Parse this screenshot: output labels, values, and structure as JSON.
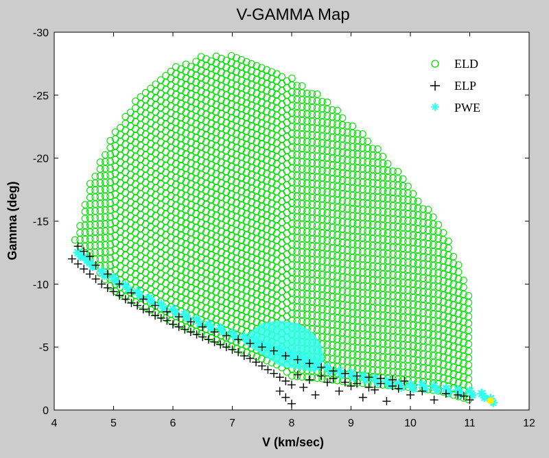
{
  "chart_data": {
    "type": "scatter",
    "title": "V-GAMMA Map",
    "xlabel": "V (km/sec)",
    "ylabel": "Gamma (deg)",
    "xlim": [
      4,
      12
    ],
    "ylim": [
      0,
      -30
    ],
    "y_axis_inverted": true,
    "xticks": [
      "4",
      "5",
      "6",
      "7",
      "8",
      "9",
      "10",
      "11",
      "12"
    ],
    "yticks": [
      "0",
      "-5",
      "-10",
      "-15",
      "-20",
      "-25",
      "-30"
    ],
    "grid": false,
    "legend_position": "top-right",
    "series": [
      {
        "name": "ELD",
        "marker": "o",
        "color": "#00e000",
        "region": {
          "lower_boundary": [
            [
              4.35,
              -13.5
            ],
            [
              5,
              -9.5
            ],
            [
              6,
              -7
            ],
            [
              7,
              -5
            ],
            [
              7.8,
              -3.5
            ],
            [
              8,
              -2.7
            ],
            [
              8.5,
              -2.5
            ],
            [
              9,
              -2.2
            ],
            [
              9.5,
              -2
            ],
            [
              10,
              -1.8
            ],
            [
              10.5,
              -1.5
            ],
            [
              11,
              -0.8
            ]
          ],
          "upper_boundary": [
            [
              4.35,
              -13.5
            ],
            [
              4.6,
              -18
            ],
            [
              5,
              -22
            ],
            [
              5.5,
              -25.5
            ],
            [
              6,
              -27.3
            ],
            [
              6.5,
              -28.1
            ],
            [
              6.8,
              -28.3
            ],
            [
              7.2,
              -28
            ],
            [
              7.8,
              -27
            ],
            [
              8.5,
              -25
            ],
            [
              9.2,
              -22
            ],
            [
              9.8,
              -19
            ],
            [
              10.3,
              -16
            ],
            [
              10.7,
              -13
            ],
            [
              10.95,
              -10
            ],
            [
              11.05,
              -7.5
            ],
            [
              11.05,
              -3
            ],
            [
              11,
              -0.8
            ]
          ]
        }
      },
      {
        "name": "ELP",
        "marker": "+",
        "color": "#000000",
        "points": [
          [
            4.3,
            -12
          ],
          [
            4.4,
            -11.6
          ],
          [
            4.5,
            -11.2
          ],
          [
            4.6,
            -10.8
          ],
          [
            4.7,
            -10.4
          ],
          [
            4.8,
            -10
          ],
          [
            4.9,
            -9.7
          ],
          [
            5,
            -9.4
          ],
          [
            5.1,
            -9.1
          ],
          [
            5.2,
            -8.8
          ],
          [
            5.3,
            -8.5
          ],
          [
            5.4,
            -8.3
          ],
          [
            5.5,
            -8
          ],
          [
            5.6,
            -7.8
          ],
          [
            5.7,
            -7.5
          ],
          [
            5.8,
            -7.3
          ],
          [
            5.9,
            -7.1
          ],
          [
            6,
            -6.8
          ],
          [
            6.1,
            -6.6
          ],
          [
            6.2,
            -6.4
          ],
          [
            6.3,
            -6.2
          ],
          [
            6.4,
            -6
          ],
          [
            6.5,
            -5.8
          ],
          [
            6.6,
            -5.6
          ],
          [
            6.7,
            -5.4
          ],
          [
            6.8,
            -5.2
          ],
          [
            6.9,
            -5
          ],
          [
            7,
            -4.8
          ],
          [
            7.1,
            -4.6
          ],
          [
            7.2,
            -4.3
          ],
          [
            7.3,
            -4.1
          ],
          [
            7.4,
            -3.8
          ],
          [
            7.5,
            -3.5
          ],
          [
            7.6,
            -3.2
          ],
          [
            7.7,
            -2.9
          ],
          [
            7.8,
            -2.6
          ],
          [
            7.9,
            -2.3
          ],
          [
            8,
            -2
          ],
          [
            4.4,
            -13
          ],
          [
            4.5,
            -12.6
          ],
          [
            4.6,
            -12.2
          ],
          [
            4.7,
            -11.5
          ],
          [
            4.9,
            -10.8
          ],
          [
            5.1,
            -10
          ],
          [
            5.3,
            -9.3
          ],
          [
            5.5,
            -8.8
          ],
          [
            5.7,
            -8.3
          ],
          [
            5.9,
            -7.8
          ],
          [
            6.1,
            -7.4
          ],
          [
            6.3,
            -7
          ],
          [
            6.5,
            -6.6
          ],
          [
            6.7,
            -6.2
          ],
          [
            6.9,
            -5.9
          ],
          [
            7.1,
            -5.6
          ],
          [
            7.3,
            -5.3
          ],
          [
            7.5,
            -5
          ],
          [
            7.7,
            -4.7
          ],
          [
            7.9,
            -4.3
          ],
          [
            8.1,
            -4
          ],
          [
            8.3,
            -3.7
          ],
          [
            8.5,
            -3.4
          ],
          [
            8.7,
            -3.1
          ],
          [
            8.9,
            -2.9
          ],
          [
            9.1,
            -2.7
          ],
          [
            9.3,
            -2.6
          ],
          [
            9.5,
            -2.5
          ],
          [
            9.7,
            -2.4
          ],
          [
            9.9,
            -2.3
          ],
          [
            7.8,
            -1.5
          ],
          [
            7.9,
            -1
          ],
          [
            8,
            -0.5
          ],
          [
            8.2,
            -1.8
          ],
          [
            8.4,
            -1.2
          ],
          [
            8.6,
            -2.2
          ],
          [
            8.8,
            -1.5
          ],
          [
            9,
            -1.9
          ],
          [
            9.2,
            -1
          ],
          [
            9.4,
            -1.6
          ],
          [
            9.6,
            -0.7
          ],
          [
            9.8,
            -1.7
          ],
          [
            10,
            -1.2
          ],
          [
            10.2,
            -1.5
          ],
          [
            10.4,
            -0.8
          ],
          [
            10.6,
            -1.3
          ],
          [
            10.8,
            -1.2
          ],
          [
            11,
            -0.8
          ],
          [
            8.1,
            -2.8
          ],
          [
            8.3,
            -2.4
          ],
          [
            8.5,
            -2.7
          ],
          [
            8.7,
            -2.5
          ],
          [
            8.9,
            -2.2
          ],
          [
            9.1,
            -2.1
          ],
          [
            9.3,
            -1.8
          ],
          [
            9.5,
            -2.1
          ],
          [
            9.7,
            -1.9
          ],
          [
            10.9,
            -1.1
          ]
        ]
      },
      {
        "name": "PWE",
        "marker": "*",
        "color": "#33ffee",
        "points": [
          [
            4.4,
            -12.5
          ],
          [
            4.5,
            -12.2
          ],
          [
            4.6,
            -11.7
          ],
          [
            4.8,
            -11
          ],
          [
            5,
            -10.5
          ],
          [
            5.2,
            -9.9
          ],
          [
            5.4,
            -9.4
          ],
          [
            5.6,
            -8.9
          ],
          [
            5.8,
            -8.4
          ],
          [
            6,
            -8
          ],
          [
            6.2,
            -7.6
          ],
          [
            6.4,
            -7.2
          ],
          [
            6.6,
            -6.8
          ],
          [
            6.8,
            -6.5
          ],
          [
            7,
            -6.1
          ],
          [
            7.2,
            -5.8
          ],
          [
            7.4,
            -5.5
          ],
          [
            7.6,
            -5.1
          ],
          [
            7.8,
            -4.8
          ],
          [
            8,
            -4.5
          ],
          [
            8.2,
            -4.2
          ],
          [
            8.4,
            -3.8
          ],
          [
            8.6,
            -3.4
          ],
          [
            8.8,
            -3.1
          ],
          [
            9,
            -2.9
          ],
          [
            9.2,
            -2.7
          ],
          [
            9.4,
            -2.5
          ],
          [
            9.6,
            -2.3
          ],
          [
            9.8,
            -2.1
          ],
          [
            10,
            -2
          ],
          [
            10.2,
            -2
          ],
          [
            10.4,
            -1.9
          ],
          [
            10.6,
            -1.7
          ],
          [
            10.8,
            -1.6
          ],
          [
            11,
            -1.5
          ],
          [
            11.2,
            -1.3
          ],
          [
            11.35,
            -0.9
          ]
        ],
        "blob": [
          [
            7.2,
            -5.3
          ],
          [
            7.3,
            -6.2
          ],
          [
            7.5,
            -6.9
          ],
          [
            7.8,
            -7.1
          ],
          [
            8.1,
            -6.9
          ],
          [
            8.35,
            -6.2
          ],
          [
            8.5,
            -5.2
          ],
          [
            8.55,
            -4
          ],
          [
            8.4,
            -3
          ],
          [
            7.8,
            -3.5
          ]
        ]
      }
    ]
  }
}
